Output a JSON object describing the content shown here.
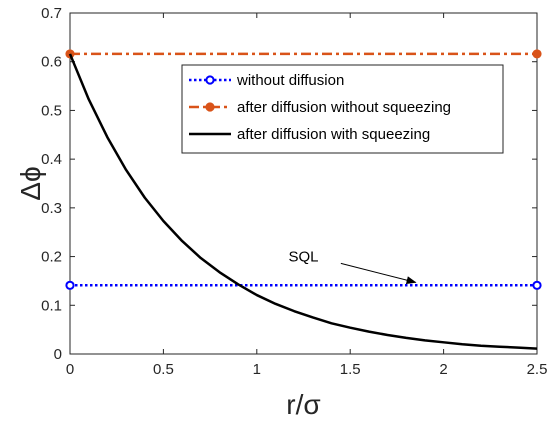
{
  "chart_data": {
    "type": "line",
    "xlabel": "r/σ",
    "ylabel": "Δϕ",
    "xlim": [
      0,
      2.5
    ],
    "ylim": [
      0,
      0.7
    ],
    "xticks": [
      0,
      0.5,
      1,
      1.5,
      2,
      2.5
    ],
    "yticks": [
      0,
      0.1,
      0.2,
      0.3,
      0.4,
      0.5,
      0.6,
      0.7
    ],
    "grid": false,
    "legend_position": "top-right",
    "series": [
      {
        "name": "without diffusion",
        "style": "dotted",
        "marker": "circle-open",
        "color": "#0000ff",
        "x": [
          0,
          2.5
        ],
        "y": [
          0.141,
          0.141
        ]
      },
      {
        "name": "after diffusion without squeezing",
        "style": "dash-dot",
        "marker": "circle-filled",
        "color": "#d95319",
        "x": [
          0,
          2.5
        ],
        "y": [
          0.616,
          0.616
        ]
      },
      {
        "name": "after diffusion with squeezing",
        "style": "solid",
        "marker": "none",
        "color": "#000000",
        "x": [
          0,
          0.1,
          0.2,
          0.3,
          0.4,
          0.5,
          0.6,
          0.7,
          0.8,
          0.9,
          1.0,
          1.1,
          1.2,
          1.3,
          1.4,
          1.5,
          1.6,
          1.7,
          1.8,
          1.9,
          2.0,
          2.1,
          2.2,
          2.3,
          2.4,
          2.5
        ],
        "y": [
          0.616,
          0.523,
          0.445,
          0.378,
          0.321,
          0.273,
          0.232,
          0.197,
          0.168,
          0.143,
          0.121,
          0.103,
          0.088,
          0.075,
          0.063,
          0.054,
          0.046,
          0.039,
          0.033,
          0.028,
          0.024,
          0.02,
          0.017,
          0.015,
          0.013,
          0.011
        ]
      }
    ],
    "annotations": [
      {
        "text": "SQL",
        "text_at": [
          1.25,
          0.19
        ],
        "arrow_from": [
          1.45,
          0.186
        ],
        "arrow_to": [
          1.85,
          0.147
        ]
      }
    ]
  }
}
